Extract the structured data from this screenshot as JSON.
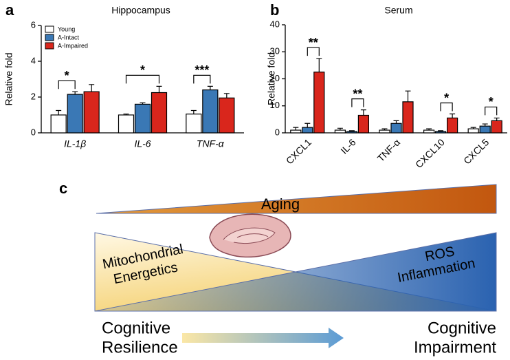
{
  "chart_data": [
    {
      "type": "bar",
      "panel": "a",
      "title": "Hippocampus",
      "ylabel": "Relative fold",
      "categories": [
        "IL-1β",
        "IL-6",
        "TNF-α"
      ],
      "series": [
        {
          "name": "Young",
          "color": "#ffffff",
          "values": [
            1.0,
            1.0,
            1.05
          ],
          "errors": [
            0.25,
            0.05,
            0.2
          ]
        },
        {
          "name": "A-Intact",
          "color": "#3a78b5",
          "values": [
            2.15,
            1.6,
            2.4
          ],
          "errors": [
            0.15,
            0.08,
            0.2
          ]
        },
        {
          "name": "A-Impaired",
          "color": "#d9261c",
          "values": [
            2.3,
            2.25,
            1.95
          ],
          "errors": [
            0.4,
            0.35,
            0.25
          ]
        }
      ],
      "ylim": [
        0,
        6
      ],
      "yticks": [
        0,
        2,
        4,
        6
      ],
      "annotations": [
        {
          "text": "*",
          "category": 0,
          "series": [
            0,
            1
          ]
        },
        {
          "text": "*",
          "category": 1,
          "series": [
            0,
            2
          ]
        },
        {
          "text": "***",
          "category": 2,
          "series": [
            0,
            1
          ]
        }
      ]
    },
    {
      "type": "bar",
      "panel": "b",
      "title": "Serum",
      "ylabel": "Relative fold",
      "categories": [
        "CXCL1",
        "IL-6",
        "TNF-α",
        "CXCL10",
        "CXCL5"
      ],
      "series": [
        {
          "color": "#ffffff",
          "values": [
            1,
            1,
            1,
            1,
            1.5
          ],
          "errors": [
            1,
            0.7,
            0.5,
            0.5,
            0.5
          ]
        },
        {
          "color": "#3a78b5",
          "values": [
            2,
            0.5,
            3.5,
            0.5,
            2.5
          ],
          "errors": [
            1.5,
            0.3,
            1,
            0.3,
            0.8
          ]
        },
        {
          "color": "#d9261c",
          "values": [
            22.5,
            6.5,
            11.5,
            5.5,
            4.5
          ],
          "errors": [
            5,
            2,
            4,
            1.5,
            1
          ]
        }
      ],
      "ylim": [
        0,
        40
      ],
      "yticks": [
        0,
        10,
        20,
        30,
        40
      ],
      "annotations": [
        {
          "text": "**",
          "category": 0,
          "series": [
            1,
            2
          ]
        },
        {
          "text": "**",
          "category": 1,
          "series": [
            1,
            2
          ]
        },
        {
          "text": "*",
          "category": 3,
          "series": [
            1,
            2
          ]
        },
        {
          "text": "*",
          "category": 4,
          "series": [
            1,
            2
          ]
        }
      ]
    }
  ],
  "diagram": {
    "panel": "c",
    "top": "Aging",
    "left": [
      "Mitochondrial",
      "Energetics"
    ],
    "right": [
      "ROS",
      "Inflammation"
    ],
    "start": [
      "Cognitive",
      "Resilience"
    ],
    "end": [
      "Cognitive",
      "Impairment"
    ]
  }
}
